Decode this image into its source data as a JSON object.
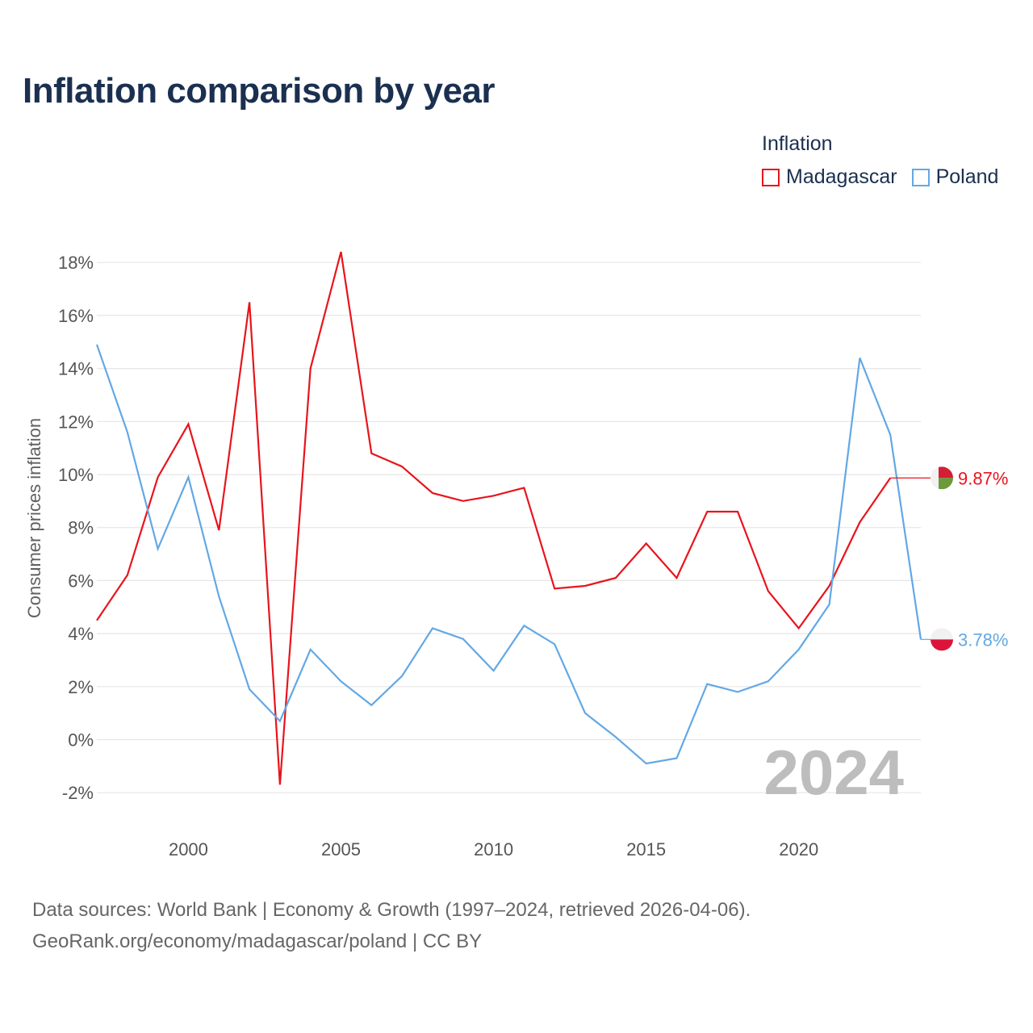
{
  "title": "Inflation comparison by year",
  "legend": {
    "title": "Inflation",
    "items": [
      {
        "label": "Madagascar",
        "color": "#e8141c"
      },
      {
        "label": "Poland",
        "color": "#62a8e5"
      }
    ]
  },
  "footer": {
    "line1": "Data sources: World Bank | Economy & Growth (1997–2024, retrieved 2026-04-06).",
    "line2": "GeoRank.org/economy/madagascar/poland | CC BY"
  },
  "chart_data": {
    "type": "line",
    "title": "Inflation comparison by year",
    "xlabel": "",
    "ylabel": "Consumer prices inflation",
    "x": [
      1997,
      1998,
      1999,
      2000,
      2001,
      2002,
      2003,
      2004,
      2005,
      2006,
      2007,
      2008,
      2009,
      2010,
      2011,
      2012,
      2013,
      2014,
      2015,
      2016,
      2017,
      2018,
      2019,
      2020,
      2021,
      2022,
      2023,
      2024
    ],
    "xlim": [
      1997,
      2024
    ],
    "ylim": [
      -3,
      18.5
    ],
    "x_ticks": [
      2000,
      2005,
      2010,
      2015,
      2020
    ],
    "x_tick_labels": [
      "2000",
      "2005",
      "2010",
      "2015",
      "2020"
    ],
    "y_ticks": [
      -2,
      0,
      2,
      4,
      6,
      8,
      10,
      12,
      14,
      16,
      18
    ],
    "y_tick_labels": [
      "-2%",
      "0%",
      "2%",
      "4%",
      "6%",
      "8%",
      "10%",
      "12%",
      "14%",
      "16%",
      "18%"
    ],
    "grid": true,
    "watermark_year": "2024",
    "series": [
      {
        "name": "Madagascar",
        "color": "#e8141c",
        "values": [
          4.5,
          6.2,
          9.9,
          11.9,
          7.9,
          16.5,
          -1.7,
          14.0,
          18.4,
          10.8,
          10.3,
          9.3,
          9.0,
          9.2,
          9.5,
          5.7,
          5.8,
          6.1,
          7.4,
          6.1,
          8.6,
          8.6,
          5.6,
          4.2,
          5.8,
          8.2,
          9.87,
          null
        ],
        "end_value": 9.87,
        "end_label": "9.87%",
        "flag": "madagascar"
      },
      {
        "name": "Poland",
        "color": "#62a8e5",
        "values": [
          14.9,
          11.6,
          7.2,
          9.9,
          5.4,
          1.9,
          0.7,
          3.4,
          2.2,
          1.3,
          2.4,
          4.2,
          3.8,
          2.6,
          4.3,
          3.6,
          1.0,
          0.1,
          -0.9,
          -0.7,
          2.1,
          1.8,
          2.2,
          3.4,
          5.1,
          14.4,
          11.5,
          3.78
        ],
        "end_value": 3.78,
        "end_label": "3.78%",
        "flag": "poland"
      }
    ]
  }
}
